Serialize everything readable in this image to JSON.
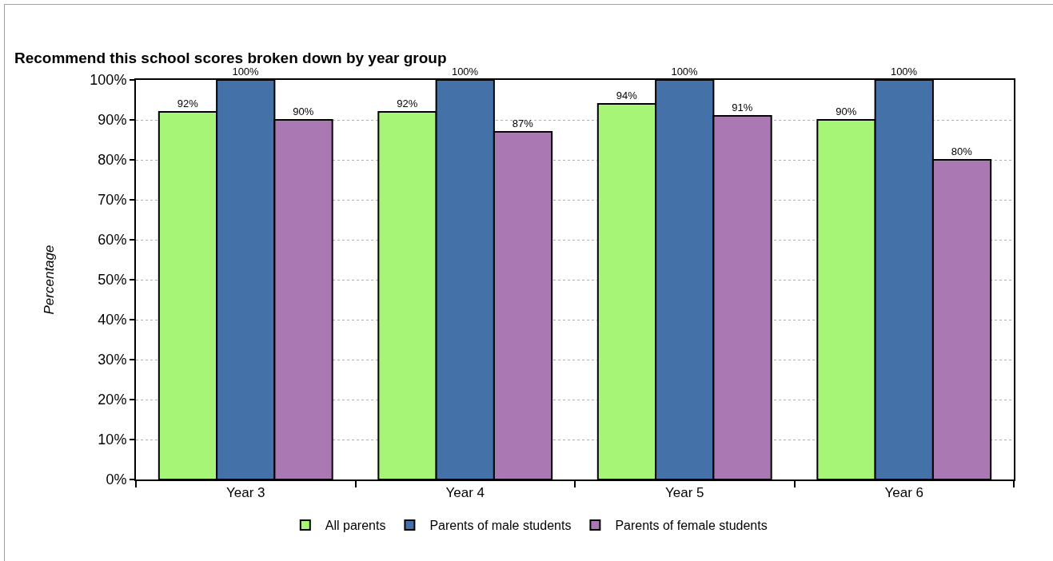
{
  "chart_data": {
    "type": "bar",
    "title": "Recommend this school scores broken down by year group",
    "ylabel": "Percentage",
    "categories": [
      "Year 3",
      "Year 4",
      "Year 5",
      "Year 6"
    ],
    "series": [
      {
        "name": "All parents",
        "color": "#a6f576",
        "values": [
          92,
          92,
          94,
          90
        ],
        "value_labels": [
          "92%",
          "92%",
          "94%",
          "90%"
        ]
      },
      {
        "name": "Parents of male students",
        "color": "#4471a7",
        "values": [
          100,
          100,
          100,
          100
        ],
        "value_labels": [
          "100%",
          "100%",
          "100%",
          "100%"
        ]
      },
      {
        "name": "Parents of female students",
        "color": "#aa78b2",
        "values": [
          90,
          87,
          91,
          80
        ],
        "value_labels": [
          "90%",
          "87%",
          "91%",
          "80%"
        ]
      }
    ],
    "ylim": [
      0,
      100
    ],
    "yticks": [
      {
        "value": 0,
        "label": "0%"
      },
      {
        "value": 10,
        "label": "10%"
      },
      {
        "value": 20,
        "label": "20%"
      },
      {
        "value": 30,
        "label": "30%"
      },
      {
        "value": 40,
        "label": "40%"
      },
      {
        "value": 50,
        "label": "50%"
      },
      {
        "value": 60,
        "label": "60%"
      },
      {
        "value": 70,
        "label": "70%"
      },
      {
        "value": 80,
        "label": "80%"
      },
      {
        "value": 90,
        "label": "90%"
      },
      {
        "value": 100,
        "label": "100%"
      }
    ],
    "grid": "y",
    "legend": "bottom"
  }
}
